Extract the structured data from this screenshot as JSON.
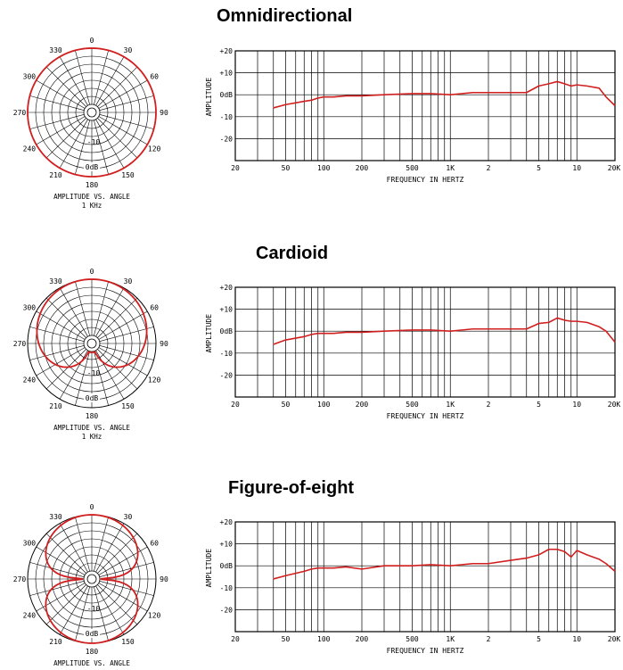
{
  "chart_data": [
    {
      "type": "polar",
      "kind": "cardioid_shape_omni",
      "pattern": "omni",
      "angle_labels": [
        "0",
        "30",
        "60",
        "90",
        "120",
        "150",
        "180",
        "210",
        "240",
        "270",
        "300",
        "330"
      ],
      "ring_labels": [
        "-10",
        "0dB"
      ],
      "caption": [
        "AMPLITUDE VS. ANGLE",
        "1 KHz"
      ],
      "curve_color": "#d11f1f"
    },
    {
      "type": "line",
      "title": "Omnidirectional",
      "ylabel": "AMPLITUDE",
      "xlabel": "FREQUENCY IN HERTZ",
      "y_ticks": [
        "+20",
        "+10",
        "0dB",
        "-10",
        "-20"
      ],
      "x_tick_labels": [
        "20",
        "50",
        "100",
        "200",
        "500",
        "1K",
        "2",
        "5",
        "10",
        "20K"
      ],
      "xscale": "log",
      "xlim": [
        20,
        20000
      ],
      "ylim": [
        -30,
        20
      ],
      "x": [
        40,
        50,
        70,
        80,
        90,
        100,
        120,
        150,
        200,
        300,
        500,
        700,
        1000,
        1500,
        2000,
        3000,
        4000,
        5000,
        6000,
        7000,
        8000,
        9000,
        10000,
        12000,
        15000,
        17000,
        20000
      ],
      "y": [
        -6,
        -4.5,
        -3,
        -2.5,
        -1.5,
        -1,
        -1,
        -0.5,
        -0.5,
        0,
        0.5,
        0.5,
        0,
        1,
        1,
        1,
        1,
        4,
        5,
        6,
        5,
        4,
        4.5,
        4,
        3,
        -1,
        -5
      ]
    },
    {
      "type": "polar",
      "pattern": "cardioid",
      "angle_labels": [
        "0",
        "30",
        "60",
        "90",
        "120",
        "150",
        "180",
        "210",
        "240",
        "270",
        "300",
        "330"
      ],
      "ring_labels": [
        "-10",
        "0dB"
      ],
      "caption": [
        "AMPLITUDE VS. ANGLE",
        "1 KHz"
      ],
      "curve_color": "#d11f1f"
    },
    {
      "type": "line",
      "title": "Cardioid",
      "ylabel": "AMPLITUDE",
      "xlabel": "FREQUENCY IN HERTZ",
      "y_ticks": [
        "+20",
        "+10",
        "0dB",
        "-10",
        "-20"
      ],
      "x_tick_labels": [
        "20",
        "50",
        "100",
        "200",
        "500",
        "1K",
        "2",
        "5",
        "10",
        "20K"
      ],
      "xscale": "log",
      "xlim": [
        20,
        20000
      ],
      "ylim": [
        -30,
        20
      ],
      "x": [
        40,
        50,
        70,
        80,
        90,
        100,
        120,
        150,
        200,
        300,
        500,
        700,
        1000,
        1500,
        2000,
        3000,
        4000,
        5000,
        6000,
        7000,
        8000,
        9000,
        10000,
        12000,
        15000,
        17000,
        20000
      ],
      "y": [
        -6,
        -4,
        -2.5,
        -1.5,
        -1,
        -1,
        -1,
        -0.5,
        -0.5,
        0,
        0.5,
        0.5,
        0,
        1,
        1,
        1,
        1,
        3.5,
        4,
        6,
        5,
        4.5,
        4.5,
        4,
        2,
        0,
        -5
      ]
    },
    {
      "type": "polar",
      "pattern": "figure8",
      "angle_labels": [
        "0",
        "30",
        "60",
        "90",
        "120",
        "150",
        "180",
        "210",
        "240",
        "270",
        "300",
        "330"
      ],
      "ring_labels": [
        "-10",
        "0dB"
      ],
      "caption": [
        "AMPLITUDE VS. ANGLE"
      ],
      "curve_color": "#d11f1f"
    },
    {
      "type": "line",
      "title": "Figure-of-eight",
      "ylabel": "AMPLITUDE",
      "xlabel": "FREQUENCY IN HERTZ",
      "y_ticks": [
        "+20",
        "+10",
        "0dB",
        "-10",
        "-20"
      ],
      "x_tick_labels": [
        "20",
        "50",
        "100",
        "200",
        "500",
        "1K",
        "2",
        "5",
        "10",
        "20K"
      ],
      "xscale": "log",
      "xlim": [
        20,
        20000
      ],
      "ylim": [
        -30,
        20
      ],
      "x": [
        40,
        50,
        70,
        80,
        90,
        100,
        120,
        150,
        200,
        300,
        500,
        700,
        1000,
        1500,
        2000,
        3000,
        4000,
        5000,
        6000,
        7000,
        8000,
        9000,
        10000,
        12000,
        15000,
        17000,
        20000
      ],
      "y": [
        -6,
        -4.5,
        -2.5,
        -1.5,
        -1,
        -1,
        -1,
        -0.5,
        -1.5,
        0,
        0,
        0.5,
        0,
        1,
        1,
        2.5,
        3.5,
        5,
        7.5,
        7.5,
        6.5,
        4,
        7,
        5,
        3,
        1,
        -2.5
      ]
    }
  ]
}
